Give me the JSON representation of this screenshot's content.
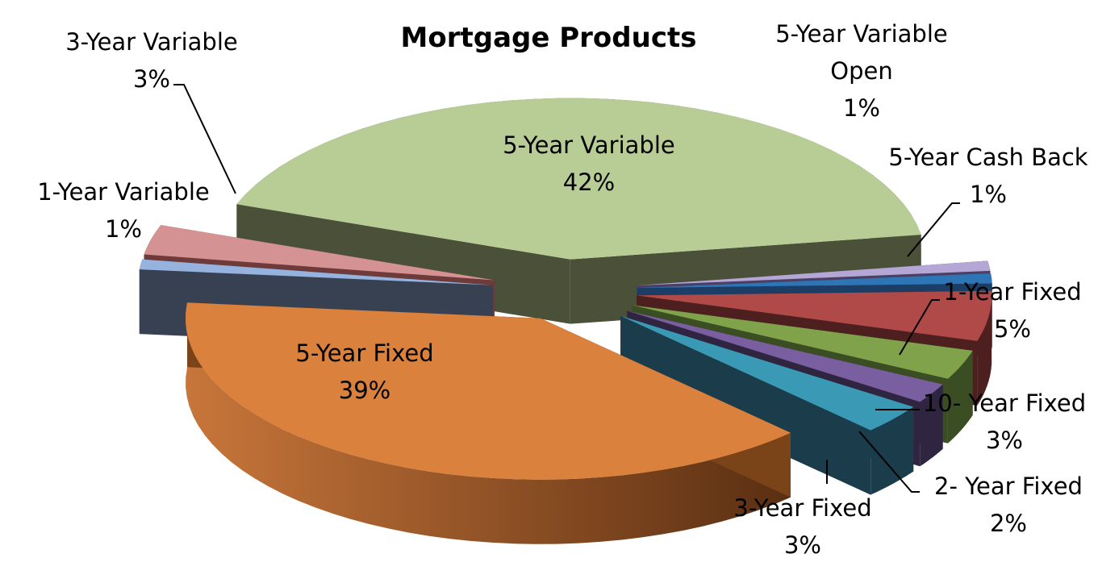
{
  "chart_data": {
    "type": "pie",
    "style": "3d-exploded",
    "title": "Mortgage Products",
    "slices": [
      {
        "name": "5-Year Variable",
        "value": 42,
        "label": "42%",
        "color": "#b7cd95",
        "side_color": "#4b5138"
      },
      {
        "name": "5-Year Variable Open",
        "value": 1,
        "label": "1%",
        "color": "#b4a7d6",
        "side_color": "#4b3f63"
      },
      {
        "name": "5-Year Cash Back",
        "value": 1,
        "label": "1%",
        "color": "#2e75b6",
        "side_color": "#1c3d66"
      },
      {
        "name": "1-Year Fixed",
        "value": 5,
        "label": "5%",
        "color": "#b04a48",
        "side_color": "#4d1f1e"
      },
      {
        "name": "10- Year Fixed",
        "value": 3,
        "label": "3%",
        "color": "#7fa24a",
        "side_color": "#3b4d23"
      },
      {
        "name": "2- Year Fixed",
        "value": 2,
        "label": "2%",
        "color": "#7a5fa0",
        "side_color": "#2f2540"
      },
      {
        "name": "3-Year Fixed",
        "value": 3,
        "label": "3%",
        "color": "#3a9ab5",
        "side_color": "#1b3c4a"
      },
      {
        "name": "5-Year Fixed",
        "value": 39,
        "label": "39%",
        "color": "#d9813d",
        "side_color": "#7a4318"
      },
      {
        "name": "1-Year Variable",
        "value": 1,
        "label": "1%",
        "color": "#95b3de",
        "side_color": "#374152"
      },
      {
        "name": "3-Year Variable",
        "value": 3,
        "label": "3%",
        "color": "#d49392",
        "side_color": "#6e3a3a"
      }
    ],
    "labels": [
      {
        "slice": "5-Year Variable",
        "lines": [
          "5-Year Variable",
          "42%"
        ]
      },
      {
        "slice": "5-Year Variable Open",
        "lines": [
          "5-Year Variable",
          "Open",
          "1%"
        ]
      },
      {
        "slice": "5-Year Cash Back",
        "lines": [
          "5-Year Cash Back",
          "1%"
        ]
      },
      {
        "slice": "1-Year Fixed",
        "lines": [
          "1-Year Fixed",
          "5%"
        ]
      },
      {
        "slice": "10- Year Fixed",
        "lines": [
          "10- Year Fixed",
          "3%"
        ]
      },
      {
        "slice": "2- Year Fixed",
        "lines": [
          "2- Year Fixed",
          "2%"
        ]
      },
      {
        "slice": "3-Year Fixed",
        "lines": [
          "3-Year Fixed",
          "3%"
        ]
      },
      {
        "slice": "5-Year Fixed",
        "lines": [
          "5-Year Fixed",
          "39%"
        ]
      },
      {
        "slice": "1-Year Variable",
        "lines": [
          "1-Year Variable",
          "1%"
        ]
      },
      {
        "slice": "3-Year Variable",
        "lines": [
          "3-Year Variable",
          "3%"
        ]
      }
    ]
  }
}
